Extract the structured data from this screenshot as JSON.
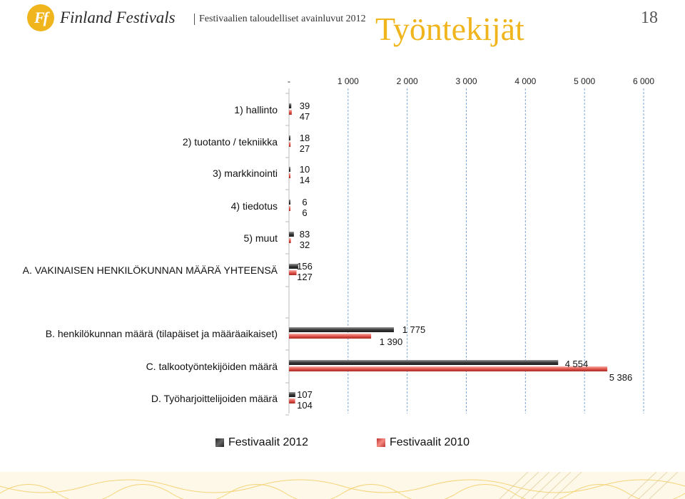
{
  "header": {
    "logo_mark": "Ff",
    "logo_text": "Finland Festivals",
    "subtitle": "Festivaalien taloudelliset avainluvut 2012",
    "title": "Työntekijät",
    "page_number": "18"
  },
  "colors": {
    "series_2012": "#4a4a4a",
    "series_2010": "#e05a52",
    "title": "#f0b51c",
    "grid": "#7ea6d6"
  },
  "chart_data": {
    "type": "bar",
    "orientation": "horizontal",
    "xlim": [
      0,
      6000
    ],
    "x_ticks": [
      "-",
      "1 000",
      "2 000",
      "3 000",
      "4 000",
      "5 000",
      "6 000"
    ],
    "grid": "dashed vertical",
    "legend_position": "bottom",
    "categories": [
      "1) hallinto",
      "2) tuotanto / tekniikka",
      "3) markkinointi",
      "4) tiedotus",
      "5) muut",
      "A. VAKINAISEN HENKILÖKUNNAN MÄÄRÄ YHTEENSÄ",
      "B. henkilökunnan määrä (tilapäiset ja määräaikaiset)",
      "C. talkootyöntekijöiden määrä",
      "D. Työharjoittelijoiden määrä"
    ],
    "series": [
      {
        "name": "Festivaalit 2012",
        "values": [
          39,
          18,
          10,
          6,
          83,
          156,
          1775,
          4554,
          107
        ],
        "labels": [
          "39",
          "18",
          "10",
          "6",
          "83",
          "156",
          "1 775",
          "4 554",
          "107"
        ]
      },
      {
        "name": "Festivaalit 2010",
        "values": [
          47,
          27,
          14,
          6,
          32,
          127,
          1390,
          5386,
          104
        ],
        "labels": [
          "47",
          "27",
          "14",
          "6",
          "32",
          "127",
          "1 390",
          "5 386",
          "104"
        ]
      }
    ]
  }
}
